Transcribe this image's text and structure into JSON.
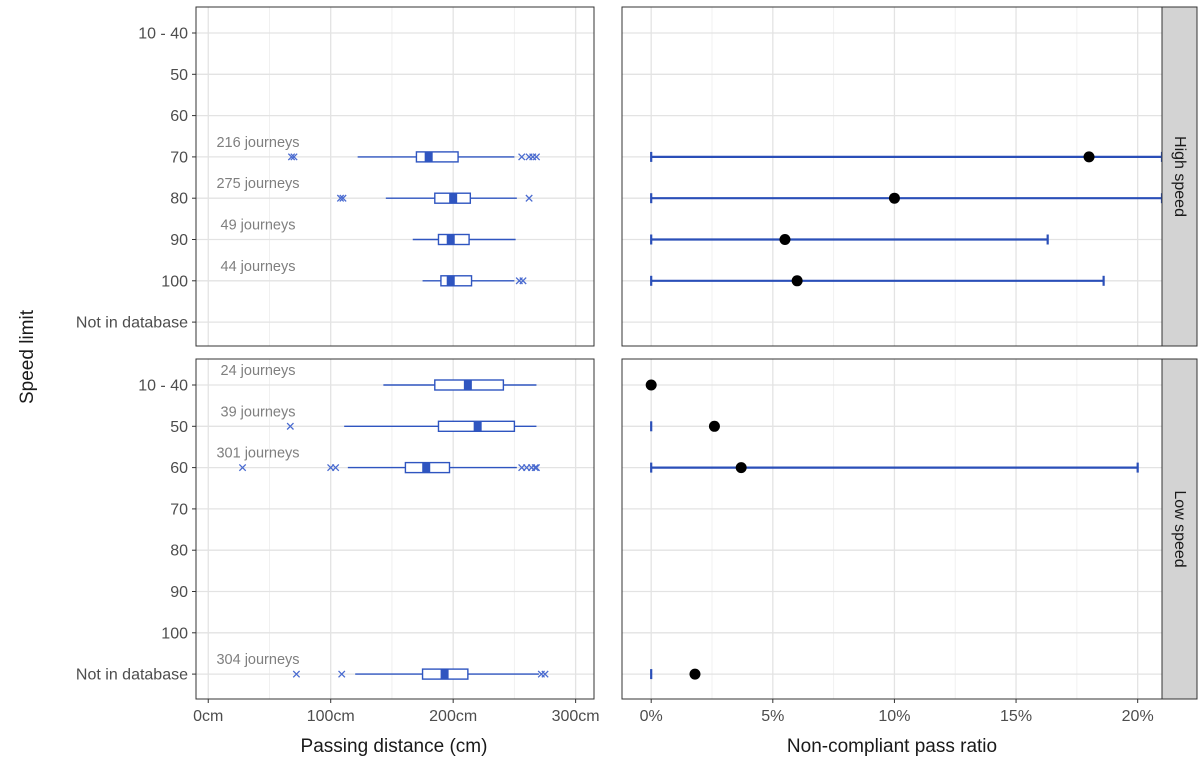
{
  "chart_data": {
    "type": "faceted-boxplot-and-interval",
    "ylabel": "Speed limit",
    "speed_limits": [
      "10 - 40",
      "50",
      "60",
      "70",
      "80",
      "90",
      "100",
      "Not in database"
    ],
    "facets": [
      "High speed",
      "Low speed"
    ],
    "left_panel": {
      "xlabel": "Passing distance (cm)",
      "xlim": [
        -10,
        315
      ],
      "xticks": [
        0,
        100,
        200,
        300
      ],
      "xtick_labels": [
        "0cm",
        "100cm",
        "200cm",
        "300cm"
      ],
      "boxes": [
        {
          "facet": "High speed",
          "speed_limit": "70",
          "journeys": "216 journeys",
          "whisker_low": 122,
          "q1": 170,
          "median": 180,
          "q3": 204,
          "whisker_high": 250,
          "outliers": [
            68,
            70,
            256,
            262,
            265,
            268
          ]
        },
        {
          "facet": "High speed",
          "speed_limit": "80",
          "journeys": "275 journeys",
          "whisker_low": 145,
          "q1": 185,
          "median": 200,
          "q3": 214,
          "whisker_high": 252,
          "outliers": [
            108,
            110,
            262
          ]
        },
        {
          "facet": "High speed",
          "speed_limit": "90",
          "journeys": "49 journeys",
          "whisker_low": 167,
          "q1": 188,
          "median": 198,
          "q3": 213,
          "whisker_high": 251,
          "outliers": []
        },
        {
          "facet": "High speed",
          "speed_limit": "100",
          "journeys": "44 journeys",
          "whisker_low": 175,
          "q1": 190,
          "median": 198,
          "q3": 215,
          "whisker_high": 250,
          "outliers": [
            254,
            257
          ]
        },
        {
          "facet": "Low speed",
          "speed_limit": "10 - 40",
          "journeys": "24 journeys",
          "whisker_low": 143,
          "q1": 185,
          "median": 212,
          "q3": 241,
          "whisker_high": 268,
          "outliers": []
        },
        {
          "facet": "Low speed",
          "speed_limit": "50",
          "journeys": "39 journeys",
          "whisker_low": 111,
          "q1": 188,
          "median": 220,
          "q3": 250,
          "whisker_high": 268,
          "outliers": [
            67
          ]
        },
        {
          "facet": "Low speed",
          "speed_limit": "60",
          "journeys": "301 journeys",
          "whisker_low": 114,
          "q1": 161,
          "median": 178,
          "q3": 197,
          "whisker_high": 252,
          "outliers": [
            28,
            100,
            104,
            256,
            260,
            264,
            267,
            268
          ]
        },
        {
          "facet": "Low speed",
          "speed_limit": "Not in database",
          "journeys": "304 journeys",
          "whisker_low": 120,
          "q1": 175,
          "median": 193,
          "q3": 212,
          "whisker_high": 270,
          "outliers": [
            72,
            109,
            272,
            275
          ]
        }
      ]
    },
    "right_panel": {
      "xlabel": "Non-compliant pass ratio",
      "xlim": [
        -1.2,
        21.0
      ],
      "xticks": [
        0,
        5,
        10,
        15,
        20
      ],
      "xtick_labels": [
        "0%",
        "5%",
        "10%",
        "15%",
        "20%"
      ],
      "points": [
        {
          "facet": "High speed",
          "speed_limit": "70",
          "ratio": 18.0,
          "ci_low": 0,
          "ci_high": 21.0
        },
        {
          "facet": "High speed",
          "speed_limit": "80",
          "ratio": 10.0,
          "ci_low": 0,
          "ci_high": 21.0
        },
        {
          "facet": "High speed",
          "speed_limit": "90",
          "ratio": 5.5,
          "ci_low": 0,
          "ci_high": 16.3
        },
        {
          "facet": "High speed",
          "speed_limit": "100",
          "ratio": 6.0,
          "ci_low": 0,
          "ci_high": 18.6
        },
        {
          "facet": "Low speed",
          "speed_limit": "10 - 40",
          "ratio": 0.0,
          "ci_low": 0,
          "ci_high": 0
        },
        {
          "facet": "Low speed",
          "speed_limit": "50",
          "ratio": 2.6,
          "ci_low": 0,
          "ci_high": 0
        },
        {
          "facet": "Low speed",
          "speed_limit": "60",
          "ratio": 3.7,
          "ci_low": 0,
          "ci_high": 20.0
        },
        {
          "facet": "Low speed",
          "speed_limit": "Not in database",
          "ratio": 1.8,
          "ci_low": 0,
          "ci_high": 0
        }
      ]
    },
    "colors": {
      "box": "#2f55c0",
      "box_line": "#2f55c0",
      "outlier": "#4a6bd0",
      "point": "#000000",
      "errorbar": "#2a4fb8",
      "grid_major": "#e3e3e3",
      "grid_minor": "#f0f0f0",
      "panel_border": "#333333",
      "strip_fill": "#d3d3d3",
      "label": "#7f7f7f"
    }
  }
}
